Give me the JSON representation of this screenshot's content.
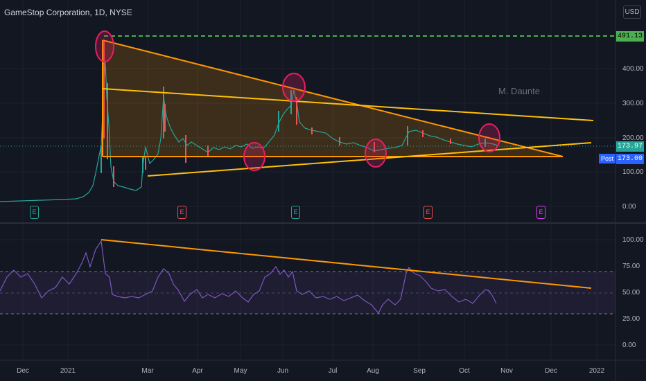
{
  "header": {
    "title": "GameStop Corporation, 1D, NYSE",
    "currency_button": "USD"
  },
  "watermark": "M. Daunte",
  "price_axis": {
    "labels": [
      "400.00",
      "300.00",
      "200.00",
      "100.00",
      "0.00"
    ],
    "resistance_tag": "491.13",
    "last_price_tag": "173.97",
    "post_tag": "173.00",
    "post_label": "Post"
  },
  "rsi_axis": {
    "labels": [
      "100.00",
      "75.00",
      "50.00",
      "25.00",
      "0.00"
    ],
    "upper_band": 70,
    "lower_band": 30
  },
  "time_axis": {
    "labels": [
      "Dec",
      "2021",
      "Mar",
      "Apr",
      "May",
      "Jun",
      "Jul",
      "Aug",
      "Sep",
      "Oct",
      "Nov",
      "Dec",
      "2022"
    ]
  },
  "earnings_markers": [
    {
      "label": "E",
      "status": "past"
    },
    {
      "label": "E",
      "status": "past-negative"
    },
    {
      "label": "E",
      "status": "past"
    },
    {
      "label": "E",
      "status": "past-negative"
    },
    {
      "label": "E",
      "status": "upcoming"
    }
  ],
  "colors": {
    "background": "#131722",
    "up": "#26a69a",
    "down": "#ef5350",
    "trendline": "#ff9800",
    "resistance": "#4caf50",
    "circle": "#e91e63",
    "rsi": "#7e57c2",
    "upcoming_earnings": "#e040fb"
  }
}
